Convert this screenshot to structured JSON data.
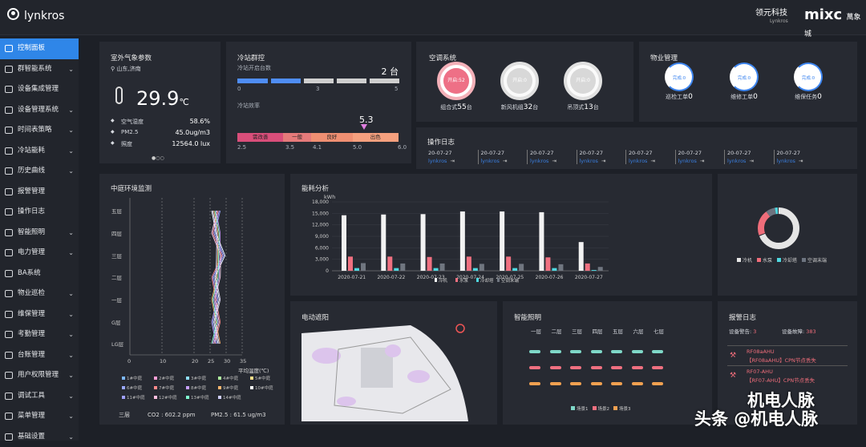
{
  "header": {
    "title": "lynkros",
    "logo1": "领元科技",
    "logo1_sub": "Lynkros",
    "logo2": "mixc",
    "logo2_sub": "萬象城"
  },
  "sidebar": [
    {
      "label": "控制面板",
      "active": true
    },
    {
      "label": "群智能系统",
      "chev": true
    },
    {
      "label": "设备集成管理"
    },
    {
      "label": "设备管理系统",
      "chev": true
    },
    {
      "label": "时间表策略",
      "chev": true
    },
    {
      "label": "冷站能耗",
      "chev": true
    },
    {
      "label": "历史曲线",
      "chev": true
    },
    {
      "label": "报警管理"
    },
    {
      "label": "操作日志"
    },
    {
      "label": "智能照明",
      "chev": true
    },
    {
      "label": "电力管理",
      "chev": true
    },
    {
      "label": "BA系统"
    },
    {
      "label": "物业巡检",
      "chev": true
    },
    {
      "label": "维保管理",
      "chev": true
    },
    {
      "label": "考勤管理",
      "chev": true
    },
    {
      "label": "台账管理",
      "chev": true
    },
    {
      "label": "用户权限管理",
      "chev": true
    },
    {
      "label": "调试工具",
      "chev": true
    },
    {
      "label": "菜单管理",
      "chev": true
    },
    {
      "label": "基础设置",
      "chev": true
    }
  ],
  "weather": {
    "title": "室外气象参数",
    "city": "山东,济南",
    "temp": "29.9",
    "unit": "℃",
    "rows": [
      {
        "k": "空气湿度",
        "v": "58.6%"
      },
      {
        "k": "PM2.5",
        "v": "45.0ug/m3"
      },
      {
        "k": "照度",
        "v": "12564.0 lux"
      }
    ]
  },
  "chiller": {
    "title": "冷站群控",
    "running_label": "冷站开启台数",
    "running": "2 台",
    "scale": [
      "0",
      "3",
      "5"
    ],
    "eff_label": "冷站效率",
    "eff_value": "5.3",
    "zones": [
      "需改善",
      "一般",
      "良好",
      "出色"
    ],
    "ticks": [
      "2.5",
      "3.5",
      "4.1",
      "5.0",
      "6.0"
    ]
  },
  "hvac": {
    "title": "空调系统",
    "items": [
      {
        "state": "开启:52",
        "label": "组合式",
        "count": "55",
        "unit": "台"
      },
      {
        "state": "开启:0",
        "label": "新风机组",
        "count": "32",
        "unit": "台"
      },
      {
        "state": "开启:0",
        "label": "吊顶式",
        "count": "13",
        "unit": "台"
      }
    ]
  },
  "property": {
    "title": "物业管理",
    "items": [
      {
        "state": "完成:0",
        "label": "巡检工单",
        "count": "0"
      },
      {
        "state": "完成:0",
        "label": "维修工单",
        "count": "0"
      },
      {
        "state": "完成:0",
        "label": "维保任务",
        "count": "0"
      }
    ]
  },
  "oplog": {
    "title": "操作日志",
    "items": [
      {
        "date": "20-07-27",
        "user": "lynkros"
      },
      {
        "date": "20-07-27",
        "user": "lynkros"
      },
      {
        "date": "20-07-27",
        "user": "lynkros"
      },
      {
        "date": "20-07-27",
        "user": "lynkros"
      },
      {
        "date": "20-07-27",
        "user": "lynkros"
      },
      {
        "date": "20-07-27",
        "user": "lynkros"
      },
      {
        "date": "20-07-27",
        "user": "lynkros"
      },
      {
        "date": "20-07-27",
        "user": "lynkros"
      }
    ]
  },
  "env": {
    "title": "中庭环境监测",
    "floors": [
      "五层",
      "四层",
      "三层",
      "二层",
      "一层",
      "G层",
      "LG层"
    ],
    "xticks": [
      "0",
      "10",
      "20",
      "25",
      "30",
      "35"
    ],
    "xlabel": "平均温度(℃)",
    "legend": [
      "1#中庭",
      "2#中庭",
      "3#中庭",
      "4#中庭",
      "5#中庭",
      "6#中庭",
      "7#中庭",
      "8#中庭",
      "9#中庭",
      "10#中庭",
      "11#中庭",
      "12#中庭",
      "13#中庭",
      "14#中庭"
    ],
    "legend_colors": [
      "#7db9ff",
      "#ff9fd6",
      "#90e0ff",
      "#b0f0a0",
      "#ffe08a",
      "#9aa8ff",
      "#ff8a8a",
      "#c8a0ff",
      "#ffb870",
      "#ffffff",
      "#a0a0ff",
      "#ffc0e0",
      "#80ffd0",
      "#d0d0ff"
    ],
    "footer": {
      "floor": "三层",
      "co2": "CO2 : 602.2 ppm",
      "pm25": "PM2.5 : 61.5 ug/m3"
    }
  },
  "energy": {
    "title": "能耗分析",
    "unit": "kWh"
  },
  "chart_data": {
    "type": "bar",
    "categories": [
      "2020-07-21",
      "2020-07-22",
      "2020-07-23",
      "2020-07-24",
      "2020-07-25",
      "2020-07-26",
      "2020-07-27"
    ],
    "series": [
      {
        "name": "冷机",
        "color": "#f2f2f2",
        "values": [
          14500,
          14700,
          14800,
          15500,
          15500,
          15300,
          7500
        ]
      },
      {
        "name": "水泵",
        "color": "#f07080",
        "values": [
          3700,
          3700,
          3600,
          3700,
          3700,
          3500,
          1900
        ]
      },
      {
        "name": "冷却塔",
        "color": "#4fd8e0",
        "values": [
          700,
          700,
          700,
          700,
          700,
          700,
          200
        ]
      },
      {
        "name": "空调末端",
        "color": "#707680",
        "values": [
          2000,
          1900,
          1900,
          1800,
          1800,
          1700,
          1000
        ]
      }
    ],
    "yticks": [
      "0",
      "3,000",
      "6,000",
      "9,000",
      "12,000",
      "15,000",
      "18,000"
    ],
    "ylim": [
      0,
      18000
    ]
  },
  "donut": {
    "legend": [
      "冷机",
      "水泵",
      "冷却塔",
      "空调末端"
    ]
  },
  "shade": {
    "title": "电动遮阳"
  },
  "lighting": {
    "title": "智能照明",
    "floors": [
      "一层",
      "二层",
      "三层",
      "四层",
      "五层",
      "六层",
      "七层"
    ],
    "legend": [
      "场景1",
      "场景2",
      "场景3"
    ]
  },
  "alarm": {
    "title": "报警日志",
    "dev_label": "设备警告: ",
    "dev_count": "3",
    "fault_label": "设备故障: ",
    "fault_count": "383",
    "items": [
      {
        "name": "RF08aAHU",
        "msg": "【RF08aAHU】CPN节点丢失"
      },
      {
        "name": "RF07-AHU",
        "msg": "【RF07-AHU】CPN节点丢失"
      }
    ]
  },
  "watermark": {
    "a": "机电人脉",
    "b": "头条 @机电人脉"
  }
}
